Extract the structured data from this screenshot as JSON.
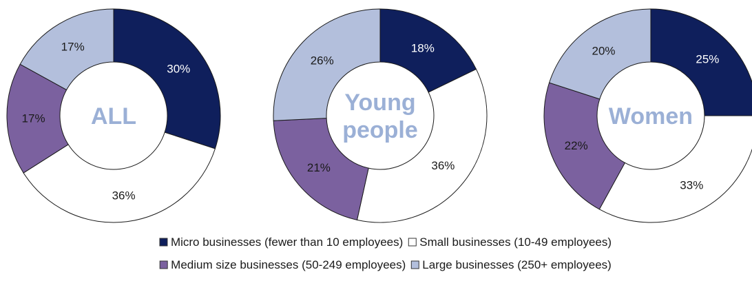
{
  "chart_data": {
    "type": "donut",
    "colors": {
      "micro": "#0f1f5c",
      "small": "#ffffff",
      "medium": "#7b619f",
      "large": "#b3bfdc",
      "center_label": "#9bb0d6",
      "stroke": "#1a1a1a",
      "text": "#1a1a1a"
    },
    "charts": [
      {
        "center_label": [
          "ALL"
        ],
        "slices": [
          {
            "category": "Micro businesses (fewer than 10 employees)",
            "value": 30,
            "label": "30%"
          },
          {
            "category": "Small businesses (10-49 employees)",
            "value": 36,
            "label": "36%"
          },
          {
            "category": "Medium size businesses (50-249 employees)",
            "value": 17,
            "label": "17%"
          },
          {
            "category": "Large businesses (250+ employees)",
            "value": 17,
            "label": "17%"
          }
        ]
      },
      {
        "center_label": [
          "Young",
          "people"
        ],
        "slices": [
          {
            "category": "Micro businesses (fewer than 10 employees)",
            "value": 18,
            "label": "18%"
          },
          {
            "category": "Small businesses (10-49 employees)",
            "value": 36,
            "label": "36%"
          },
          {
            "category": "Medium size businesses (50-249 employees)",
            "value": 21,
            "label": "21%"
          },
          {
            "category": "Large businesses (250+ employees)",
            "value": 26,
            "label": "26%"
          }
        ]
      },
      {
        "center_label": [
          "Women"
        ],
        "slices": [
          {
            "category": "Micro businesses (fewer than 10 employees)",
            "value": 25,
            "label": "25%"
          },
          {
            "category": "Small businesses (10-49 employees)",
            "value": 33,
            "label": "33%"
          },
          {
            "category": "Medium size businesses (50-249 employees)",
            "value": 22,
            "label": "22%"
          },
          {
            "category": "Large businesses (250+ employees)",
            "value": 20,
            "label": "20%"
          }
        ]
      }
    ],
    "legend": {
      "placement": "bottom-center",
      "items": [
        {
          "key": "micro",
          "label": "Micro businesses (fewer than 10 employees)"
        },
        {
          "key": "small",
          "label": "Small businesses (10-49 employees)"
        },
        {
          "key": "medium",
          "label": "Medium size businesses (50-249 employees)"
        },
        {
          "key": "large",
          "label": "Large businesses (250+ employees)"
        }
      ]
    }
  }
}
